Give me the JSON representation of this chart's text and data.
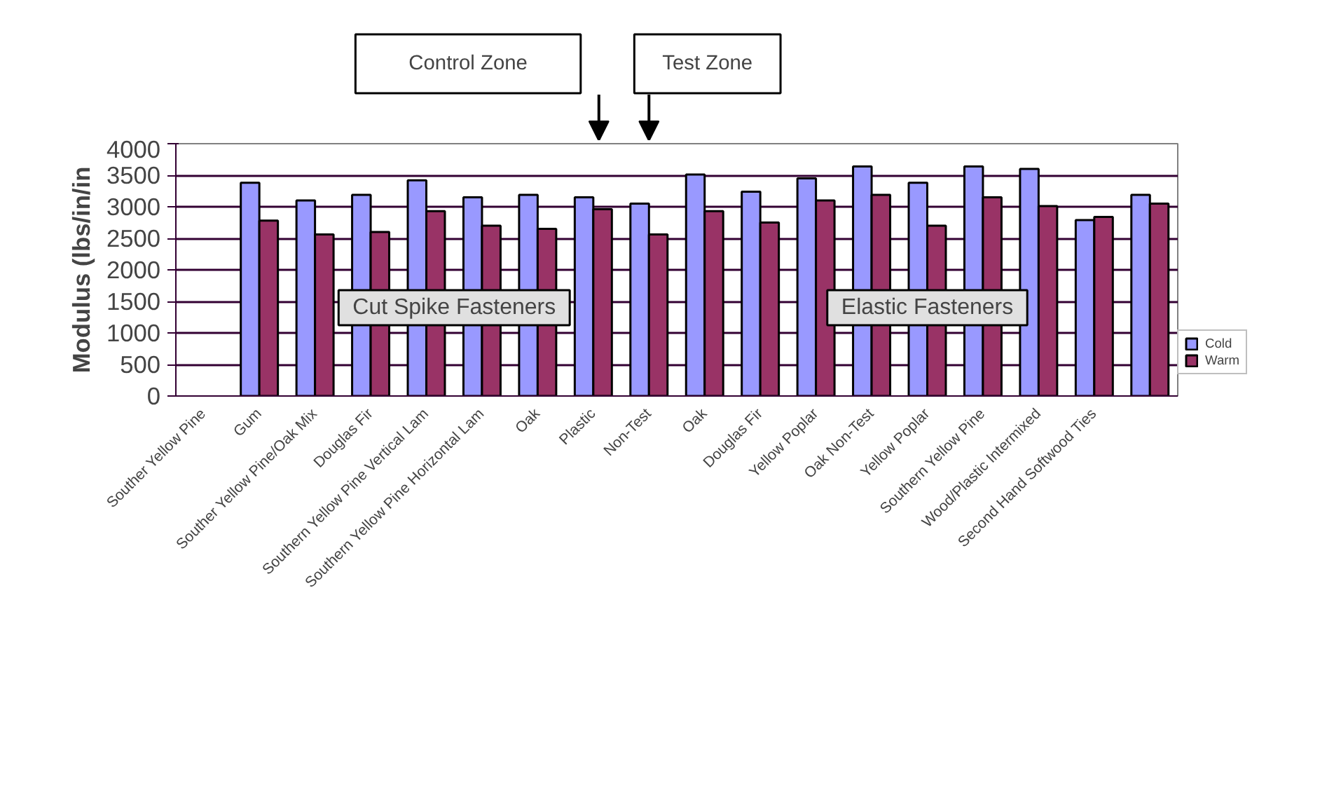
{
  "chart_data": {
    "type": "bar",
    "ylabel": "Modulus (lbs/in/in",
    "categories": [
      "Souther Yellow Pine",
      "Gum",
      "Souther Yellow Pine/Oak Mix",
      "Douglas Fir",
      "Southern Yellow Pine Vertical Lam",
      "Southern Yellow Pine Horizontal Lam",
      "Oak",
      "Plastic",
      "Non-Test",
      "Oak",
      "Douglas Fir",
      "Yellow Poplar",
      "Oak Non-Test",
      "Yellow Poplar",
      "Southern Yellow Pine",
      "Wood/Plastic Intermixed",
      "Second Hand Softwood Ties",
      null
    ],
    "series": [
      {
        "name": "Cold",
        "color": "#9999ff",
        "values": [
          null,
          3380,
          3100,
          3190,
          3420,
          3150,
          3190,
          3150,
          3050,
          3510,
          3240,
          3450,
          3640,
          3380,
          3640,
          3600,
          2790,
          3190
        ]
      },
      {
        "name": "Warm",
        "color": "#993366",
        "values": [
          null,
          2780,
          2560,
          2600,
          2930,
          2700,
          2650,
          2960,
          2560,
          2930,
          2750,
          3100,
          3190,
          2700,
          3150,
          3010,
          2840,
          3050
        ]
      }
    ],
    "ylim": [
      0,
      4000
    ],
    "yticks": [
      0,
      500,
      1000,
      1500,
      2000,
      2500,
      3000,
      3500,
      4000
    ],
    "grid": "y",
    "legend": "right",
    "annotations": [
      "Control Zone",
      "Test Zone",
      "Cut Spike Fasteners",
      "Elastic Fasteners"
    ]
  }
}
